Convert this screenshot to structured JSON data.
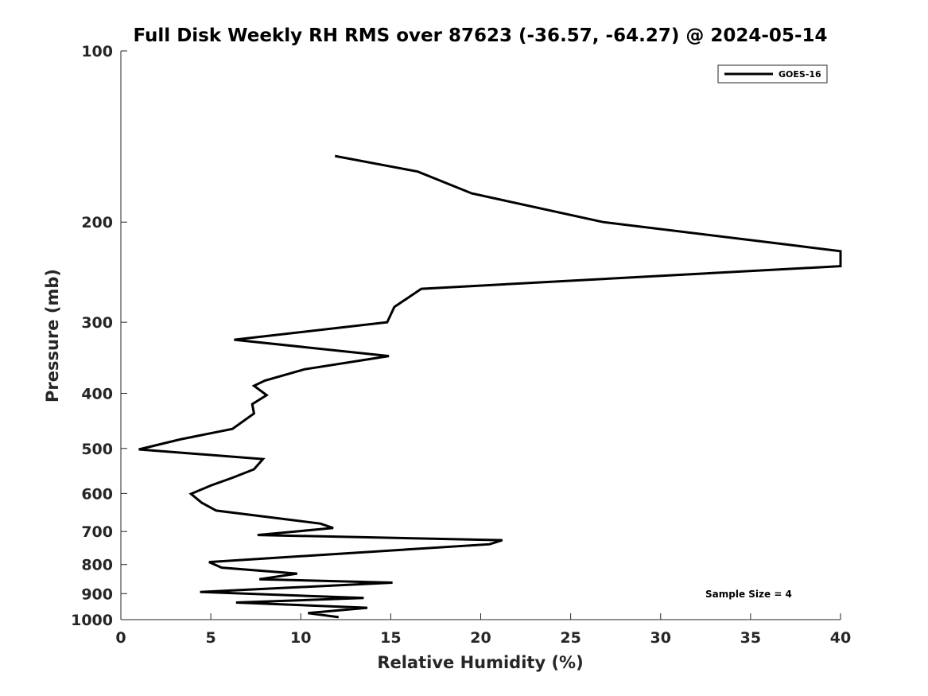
{
  "chart_data": {
    "type": "line",
    "title": "Full Disk Weekly RH RMS over 87623 (-36.57, -64.27) @ 2024-05-14",
    "xlabel": "Relative Humidity (%)",
    "ylabel": "Pressure (mb)",
    "xlim": [
      0,
      40
    ],
    "ylim": [
      1000,
      100
    ],
    "y_scale": "log",
    "x_ticks": [
      0,
      5,
      10,
      15,
      20,
      25,
      30,
      35,
      40
    ],
    "y_ticks": [
      100,
      200,
      300,
      400,
      500,
      600,
      700,
      800,
      900,
      1000
    ],
    "grid": false,
    "legend_position": "top-right",
    "line_color": "#000000",
    "series": [
      {
        "name": "GOES-16",
        "x": [
          11.9,
          16.5,
          19.5,
          26.8,
          37.5,
          40.0,
          40.0,
          16.7,
          15.2,
          14.8,
          6.3,
          14.9,
          10.2,
          8.0,
          7.4,
          8.1,
          7.3,
          7.4,
          6.2,
          3.3,
          1.0,
          7.9,
          7.4,
          6.2,
          5.0,
          3.9,
          4.5,
          5.3,
          11.1,
          11.8,
          7.6,
          21.2,
          20.5,
          4.9,
          5.6,
          9.8,
          7.7,
          15.1,
          4.4,
          13.5,
          6.4,
          13.7,
          10.4,
          12.1
        ],
        "y": [
          153,
          163,
          178,
          200,
          220,
          225,
          239,
          262,
          282,
          300,
          322,
          344,
          363,
          380,
          388,
          403,
          418,
          434,
          462,
          482,
          502,
          522,
          544,
          563,
          581,
          601,
          623,
          643,
          678,
          690,
          710,
          725,
          737,
          792,
          810,
          830,
          849,
          861,
          894,
          916,
          933,
          953,
          974,
          990
        ]
      }
    ],
    "annotation": "Sample Size = 4"
  }
}
